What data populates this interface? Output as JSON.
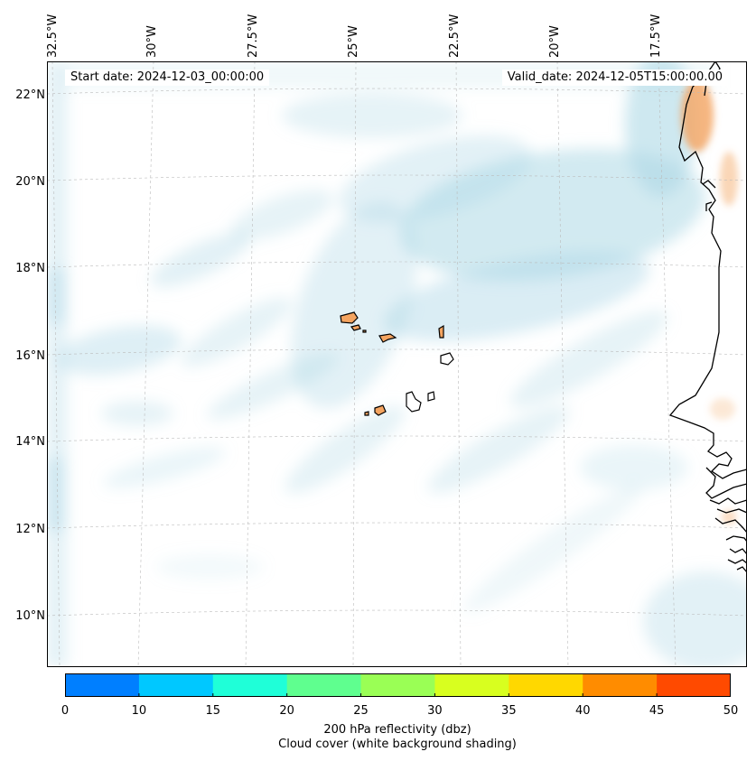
{
  "map": {
    "start_date": "Start date: 2024-12-03_00:00:00",
    "valid_date": "Valid_date: 2024-12-05T15:00:00.00",
    "lon_labels": [
      "32.5°W",
      "30°W",
      "27.5°W",
      "25°W",
      "22.5°W",
      "20°W",
      "17.5°W"
    ],
    "lat_labels": [
      "22°N",
      "20°N",
      "18°N",
      "16°N",
      "14°N",
      "12°N",
      "10°N"
    ],
    "cloud_color": "#add8e6",
    "land_echo_color": "#f4a460",
    "coastline_color": "#000000"
  },
  "colorbar": {
    "ticks": [
      "0",
      "10",
      "15",
      "20",
      "25",
      "30",
      "35",
      "40",
      "45",
      "50"
    ],
    "colors": [
      "#007fff",
      "#00c8ff",
      "#1fffd8",
      "#5fff8f",
      "#9aff55",
      "#d8ff1f",
      "#ffd800",
      "#ff8c00",
      "#ff4a00"
    ],
    "label_line1": "200 hPa reflectivity (dbz)",
    "label_line2": "Cloud cover (white background shading)"
  }
}
